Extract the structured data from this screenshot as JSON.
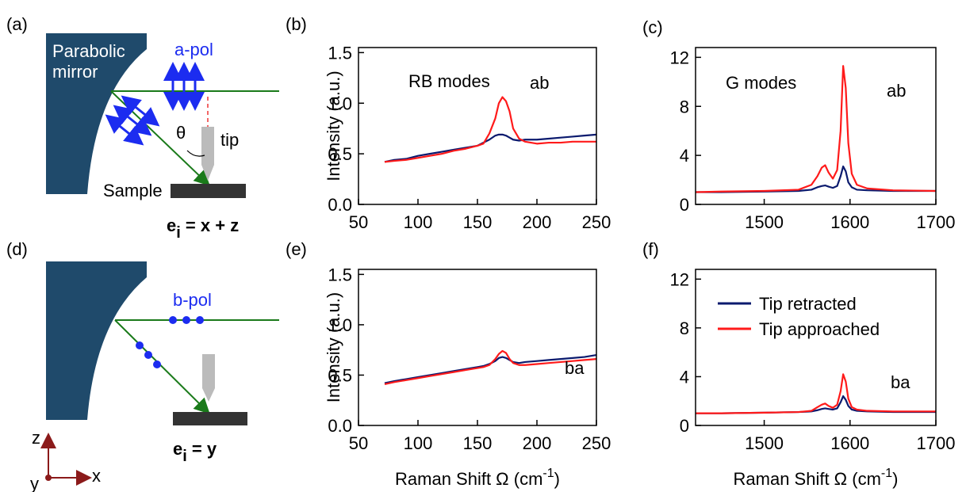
{
  "diagrams": {
    "a": {
      "label": "(a)",
      "mirror": [
        "Parabolic",
        "mirror"
      ],
      "polarization": "a-pol",
      "angle": "θ",
      "tip": "tip",
      "sample": "Sample",
      "field": [
        "e",
        "i",
        " = x + z"
      ]
    },
    "d": {
      "label": "(d)",
      "polarization": "b-pol",
      "field": [
        "e",
        "i",
        " = y"
      ],
      "axes": [
        "z",
        "x",
        "y"
      ]
    }
  },
  "chart_data": [
    {
      "type": "line",
      "panel_label": "(b)",
      "annotations": [
        "RB modes",
        "ab"
      ],
      "ylabel": "Intensity (a.u.)",
      "x": [
        72,
        80,
        90,
        100,
        110,
        120,
        130,
        140,
        150,
        155,
        160,
        165,
        168,
        171,
        174,
        177,
        180,
        185,
        190,
        200,
        210,
        220,
        230,
        240,
        250
      ],
      "series": [
        {
          "name": "Tip retracted",
          "color": "#0b1a6e",
          "values": [
            0.42,
            0.44,
            0.45,
            0.48,
            0.5,
            0.52,
            0.54,
            0.56,
            0.58,
            0.61,
            0.64,
            0.68,
            0.69,
            0.69,
            0.68,
            0.66,
            0.64,
            0.63,
            0.64,
            0.64,
            0.65,
            0.66,
            0.67,
            0.68,
            0.69
          ]
        },
        {
          "name": "Tip approached",
          "color": "#ff1a1a",
          "values": [
            0.42,
            0.43,
            0.44,
            0.46,
            0.48,
            0.5,
            0.53,
            0.55,
            0.58,
            0.6,
            0.7,
            0.85,
            1.0,
            1.06,
            1.02,
            0.92,
            0.75,
            0.65,
            0.62,
            0.6,
            0.61,
            0.61,
            0.62,
            0.62,
            0.62
          ]
        }
      ],
      "xlim": [
        50,
        250
      ],
      "ylim": [
        0,
        1.55
      ],
      "xticks": [
        50,
        100,
        150,
        200,
        250
      ],
      "yticks": [
        {
          "value": 0,
          "label": "0.0"
        },
        0.5,
        {
          "value": 1,
          "label": "1.0"
        },
        1.5
      ]
    },
    {
      "type": "line",
      "panel_label": "(c)",
      "annotations": [
        "G modes",
        "ab"
      ],
      "x": [
        1420,
        1450,
        1500,
        1540,
        1555,
        1562,
        1567,
        1571,
        1575,
        1580,
        1585,
        1589,
        1592,
        1595,
        1598,
        1602,
        1608,
        1620,
        1650,
        1700
      ],
      "series": [
        {
          "name": "Tip retracted",
          "color": "#0b1a6e",
          "values": [
            1.0,
            1.0,
            1.05,
            1.1,
            1.2,
            1.4,
            1.5,
            1.55,
            1.45,
            1.35,
            1.5,
            2.3,
            3.1,
            2.7,
            1.8,
            1.4,
            1.2,
            1.15,
            1.1,
            1.1
          ]
        },
        {
          "name": "Tip approached",
          "color": "#ff1a1a",
          "values": [
            1.0,
            1.05,
            1.1,
            1.2,
            1.6,
            2.3,
            3.0,
            3.2,
            2.6,
            2.1,
            2.8,
            6.0,
            11.3,
            9.5,
            5.0,
            2.5,
            1.6,
            1.3,
            1.15,
            1.1
          ]
        }
      ],
      "xlim": [
        1420,
        1700
      ],
      "ylim": [
        0,
        12.8
      ],
      "xticks": [
        1500,
        1600,
        1700
      ],
      "yticks": [
        0,
        4,
        8,
        12
      ]
    },
    {
      "type": "line",
      "panel_label": "(e)",
      "annotations": [
        "ba"
      ],
      "ylabel": "Intensity (a.u.)",
      "xlabel": [
        "Raman Shift Ω (cm",
        "-1",
        ")"
      ],
      "x": [
        72,
        80,
        90,
        100,
        110,
        120,
        130,
        140,
        150,
        155,
        160,
        165,
        168,
        171,
        174,
        177,
        180,
        185,
        190,
        200,
        210,
        220,
        230,
        240,
        250
      ],
      "series": [
        {
          "name": "Tip retracted",
          "color": "#0b1a6e",
          "values": [
            0.42,
            0.44,
            0.46,
            0.48,
            0.5,
            0.52,
            0.54,
            0.56,
            0.58,
            0.59,
            0.61,
            0.64,
            0.67,
            0.68,
            0.67,
            0.65,
            0.63,
            0.62,
            0.63,
            0.64,
            0.65,
            0.66,
            0.67,
            0.68,
            0.7
          ]
        },
        {
          "name": "Tip approached",
          "color": "#ff1a1a",
          "values": [
            0.41,
            0.43,
            0.45,
            0.47,
            0.49,
            0.51,
            0.53,
            0.55,
            0.57,
            0.58,
            0.6,
            0.66,
            0.71,
            0.74,
            0.72,
            0.66,
            0.62,
            0.6,
            0.6,
            0.61,
            0.62,
            0.63,
            0.64,
            0.65,
            0.66
          ]
        }
      ],
      "xlim": [
        50,
        250
      ],
      "ylim": [
        0,
        1.55
      ],
      "xticks": [
        50,
        100,
        150,
        200,
        250
      ],
      "yticks": [
        {
          "value": 0,
          "label": "0.0"
        },
        0.5,
        {
          "value": 1,
          "label": "1.0"
        },
        1.5
      ]
    },
    {
      "type": "line",
      "panel_label": "(f)",
      "annotations": [
        "ba"
      ],
      "xlabel": [
        "Raman Shift Ω (cm",
        "-1",
        ")"
      ],
      "legend": "upper right",
      "x": [
        1420,
        1450,
        1500,
        1540,
        1555,
        1562,
        1567,
        1571,
        1575,
        1580,
        1585,
        1589,
        1592,
        1595,
        1598,
        1602,
        1608,
        1620,
        1650,
        1700
      ],
      "series": [
        {
          "name": "Tip retracted",
          "color": "#0b1a6e",
          "values": [
            1.0,
            1.0,
            1.05,
            1.1,
            1.15,
            1.25,
            1.35,
            1.4,
            1.35,
            1.3,
            1.4,
            1.9,
            2.4,
            2.1,
            1.6,
            1.3,
            1.2,
            1.15,
            1.1,
            1.1
          ]
        },
        {
          "name": "Tip approached",
          "color": "#ff1a1a",
          "values": [
            1.0,
            1.0,
            1.05,
            1.1,
            1.2,
            1.5,
            1.7,
            1.8,
            1.6,
            1.45,
            1.7,
            2.8,
            4.2,
            3.6,
            2.2,
            1.5,
            1.3,
            1.2,
            1.15,
            1.15
          ]
        }
      ],
      "xlim": [
        1420,
        1700
      ],
      "ylim": [
        0,
        12.8
      ],
      "xticks": [
        1500,
        1600,
        1700
      ],
      "yticks": [
        0,
        4,
        8,
        12
      ]
    }
  ]
}
